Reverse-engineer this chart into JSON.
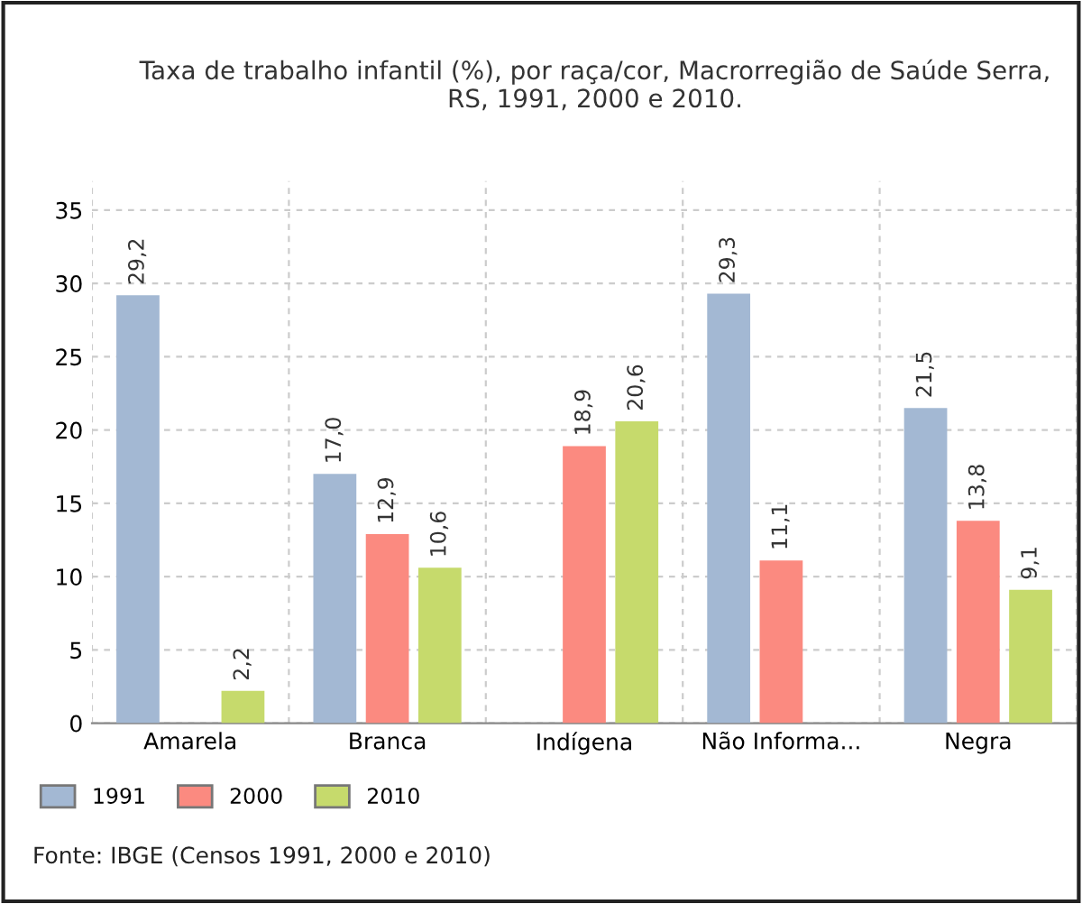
{
  "chart_data": {
    "type": "bar",
    "title": "Taxa de trabalho infantil (%), por raça/cor, Macrorregião de Saúde Serra,\nRS, 1991, 2000 e 2010.",
    "categories": [
      "Amarela",
      "Branca",
      "Indígena",
      "Não Informa...",
      "Negra"
    ],
    "series": [
      {
        "name": "1991",
        "color": "#a3b8d3",
        "values": [
          29.2,
          17.0,
          null,
          29.3,
          21.5
        ],
        "value_labels": [
          "29,2",
          "17,0",
          null,
          "29,3",
          "21,5"
        ]
      },
      {
        "name": "2000",
        "color": "#fb8a80",
        "values": [
          null,
          12.9,
          18.9,
          11.1,
          13.8
        ],
        "value_labels": [
          null,
          "12,9",
          "18,9",
          "11,1",
          "13,8"
        ]
      },
      {
        "name": "2010",
        "color": "#c6da6c",
        "values": [
          2.2,
          10.6,
          20.6,
          null,
          9.1
        ],
        "value_labels": [
          "2,2",
          "10,6",
          "20,6",
          null,
          "9,1"
        ]
      }
    ],
    "ylim": [
      0,
      37
    ],
    "yticks": [
      0,
      5,
      10,
      15,
      20,
      25,
      30,
      35
    ],
    "grid": true,
    "legend": "bottom left",
    "annotations": [
      "Fonte: IBGE (Censos 1991, 2000 e 2010)"
    ]
  }
}
